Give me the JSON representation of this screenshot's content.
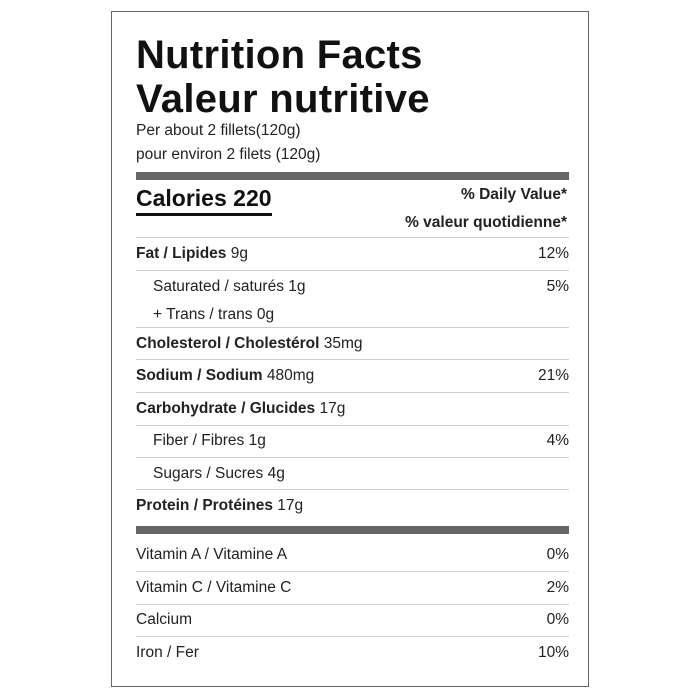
{
  "title_en": "Nutrition Facts",
  "title_fr": "Valeur nutritive",
  "serving_en": "Per about 2 fillets(120g)",
  "serving_fr": "pour environ 2 filets (120g)",
  "calories_label": "Calories 220",
  "daily_value_en": "% Daily Value*",
  "daily_value_fr": "% valeur quotidienne*",
  "nutrients": [
    {
      "name": "Fat / Lipides",
      "amount": "9g",
      "dv": "12%"
    },
    {
      "name": "Saturated / saturés",
      "amount": "1g",
      "dv": "5%"
    },
    {
      "name": "+ Trans / trans",
      "amount": "0g",
      "dv": ""
    },
    {
      "name": "Cholesterol / Cholestérol",
      "amount": "35mg",
      "dv": ""
    },
    {
      "name": "Sodium / Sodium",
      "amount": "480mg",
      "dv": "21%"
    },
    {
      "name": "Carbohydrate / Glucides",
      "amount": "17g",
      "dv": ""
    },
    {
      "name": "Fiber / Fibres",
      "amount": "1g",
      "dv": "4%"
    },
    {
      "name": "Sugars / Sucres",
      "amount": "4g",
      "dv": ""
    },
    {
      "name": "Protein / Protéines",
      "amount": "17g",
      "dv": ""
    }
  ],
  "vitamins": [
    {
      "name": "Vitamin A / Vitamine A",
      "dv": "0%"
    },
    {
      "name": "Vitamin C / Vitamine C",
      "dv": "2%"
    },
    {
      "name": "Calcium",
      "dv": "0%"
    },
    {
      "name": "Iron / Fer",
      "dv": "10%"
    }
  ]
}
